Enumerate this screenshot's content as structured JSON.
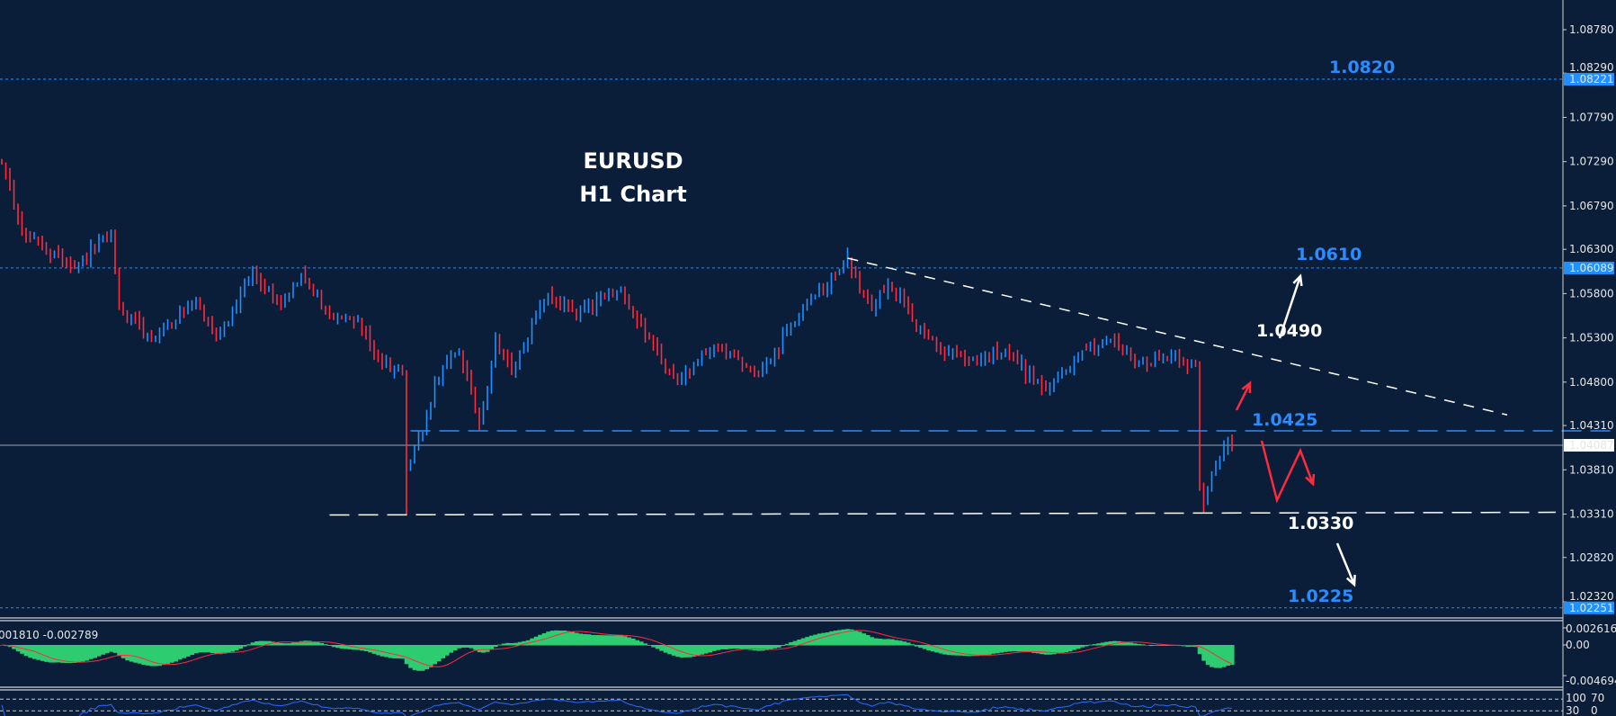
{
  "chart_data": {
    "type": "ohlc-bar",
    "title": "EURUSD",
    "subtitle": "H1 Chart",
    "symbol": "EURUSD",
    "timeframe": "H1",
    "ylim": [
      1.0205,
      1.091
    ],
    "y_ticks": [
      "1.08780",
      "1.08290",
      "1.07790",
      "1.07290",
      "1.06790",
      "1.06300",
      "1.05800",
      "1.05300",
      "1.04800",
      "1.04310",
      "1.03810",
      "1.03310",
      "1.02820",
      "1.02320"
    ],
    "y_tick_values": [
      1.0878,
      1.0829,
      1.0779,
      1.0729,
      1.0679,
      1.063,
      1.058,
      1.053,
      1.048,
      1.0431,
      1.0381,
      1.0331,
      1.0282,
      1.0232
    ],
    "close_path_bar_price": [
      [
        0,
        1.0726
      ],
      [
        6,
        1.0644
      ],
      [
        18,
        1.0609
      ],
      [
        27,
        1.0649
      ],
      [
        29,
        1.0562
      ],
      [
        37,
        1.0528
      ],
      [
        48,
        1.0574
      ],
      [
        53,
        1.0528
      ],
      [
        62,
        1.0603
      ],
      [
        69,
        1.0568
      ],
      [
        74,
        1.0603
      ],
      [
        82,
        1.0551
      ],
      [
        88,
        1.0551
      ],
      [
        93,
        1.0504
      ],
      [
        99,
        1.0493
      ],
      [
        100,
        1.0388
      ],
      [
        104,
        1.0423
      ],
      [
        107,
        1.0481
      ],
      [
        113,
        1.0516
      ],
      [
        118,
        1.0434
      ],
      [
        122,
        1.0528
      ],
      [
        126,
        1.0493
      ],
      [
        135,
        1.058
      ],
      [
        142,
        1.0556
      ],
      [
        153,
        1.0585
      ],
      [
        160,
        1.0528
      ],
      [
        167,
        1.0481
      ],
      [
        176,
        1.0522
      ],
      [
        187,
        1.0487
      ],
      [
        198,
        1.0562
      ],
      [
        209,
        1.0615
      ],
      [
        215,
        1.0562
      ],
      [
        219,
        1.0592
      ],
      [
        229,
        1.0528
      ],
      [
        239,
        1.0504
      ],
      [
        248,
        1.0516
      ],
      [
        258,
        1.047
      ],
      [
        267,
        1.0516
      ],
      [
        274,
        1.0528
      ],
      [
        280,
        1.0504
      ],
      [
        290,
        1.051
      ],
      [
        295,
        1.0498
      ],
      [
        296,
        1.0365
      ],
      [
        297,
        1.0342
      ],
      [
        300,
        1.0388
      ],
      [
        303,
        1.0417
      ],
      [
        304,
        1.04087
      ]
    ],
    "up_color": "#1e90ff",
    "down_color": "#ff2a3c",
    "price_lines": [
      {
        "price": 1.08221,
        "label": "1.08221",
        "style": "dotted",
        "color": "#1e90ff"
      },
      {
        "price": 1.06089,
        "label": "1.06089",
        "style": "dotted",
        "color": "#1e90ff"
      },
      {
        "price": 1.02251,
        "label": "1.02251",
        "style": "dotted",
        "color": "#1e90ff"
      },
      {
        "price": 1.04087,
        "label": "1.04087",
        "style": "solid",
        "color": "#9aa4b0",
        "current": true
      }
    ],
    "annotations": [
      {
        "text": "1.0820",
        "price": 1.082,
        "color": "#2a8cff"
      },
      {
        "text": "1.0610",
        "price": 1.061,
        "color": "#2a8cff"
      },
      {
        "text": "1.0490",
        "price": 1.049,
        "color": "#ffffff"
      },
      {
        "text": "1.0425",
        "price": 1.0425,
        "color": "#2a8cff"
      },
      {
        "text": "1.0330",
        "price": 1.033,
        "color": "#ffffff"
      },
      {
        "text": "1.0225",
        "price": 1.0225,
        "color": "#2a8cff"
      }
    ],
    "trendlines": [
      {
        "name": "descending-resistance",
        "from": [
          209,
          1.062
        ],
        "to": [
          372,
          1.0443
        ],
        "color": "#ffffff",
        "style": "dashed"
      },
      {
        "name": "support-1.0425",
        "from": [
          101,
          1.0425
        ],
        "to": [
          418,
          1.0425
        ],
        "color": "#2a8cff",
        "style": "dashed"
      },
      {
        "name": "support-1.0330",
        "from": [
          81,
          1.033
        ],
        "to": [
          384,
          1.0333
        ],
        "color": "#ffffff",
        "style": "dashed"
      }
    ],
    "macd": {
      "label": "001810 -0.002789",
      "ticks": [
        "0.002616",
        "0.00",
        "-0.004694"
      ],
      "tick_values": [
        0.002616,
        0,
        -0.004694
      ],
      "histogram_color": "#2ecc71",
      "signal_color": "#ff2a3c"
    },
    "oscillator": {
      "ticks": [
        "100",
        "70",
        "30",
        "0"
      ],
      "levels": [
        70,
        30
      ],
      "line_color": "#2a6cff"
    },
    "grid": false
  }
}
